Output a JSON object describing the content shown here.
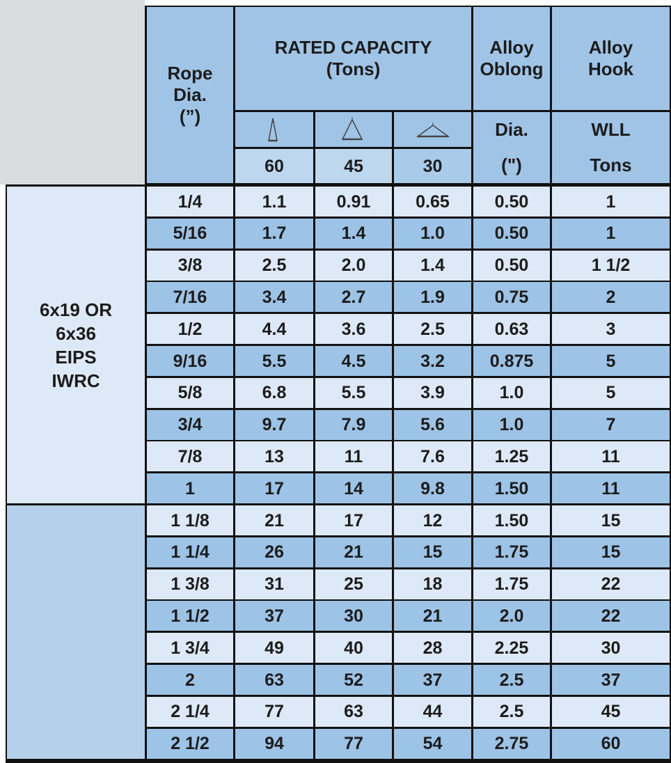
{
  "header": {
    "rope_dia": [
      "Rope",
      "Dia.",
      "(”)"
    ],
    "rated_capacity": [
      "RATED CAPACITY",
      "(Tons)"
    ],
    "angles": [
      "60",
      "45",
      "30"
    ],
    "alloy_oblong": [
      "Alloy",
      "Oblong"
    ],
    "oblong_units": [
      "Dia.",
      "(\")"
    ],
    "alloy_hook": [
      "Alloy",
      "Hook"
    ],
    "hook_units": [
      "WLL",
      "Tons"
    ]
  },
  "table": {
    "groups": [
      {
        "label": [
          "6x19 OR",
          "6x36",
          "EIPS",
          "IWRC"
        ],
        "rows": [
          [
            "1/4",
            "1.1",
            "0.91",
            "0.65",
            "0.50",
            "1"
          ],
          [
            "5/16",
            "1.7",
            "1.4",
            "1.0",
            "0.50",
            "1"
          ],
          [
            "3/8",
            "2.5",
            "2.0",
            "1.4",
            "0.50",
            "1 1/2"
          ],
          [
            "7/16",
            "3.4",
            "2.7",
            "1.9",
            "0.75",
            "2"
          ],
          [
            "1/2",
            "4.4",
            "3.6",
            "2.5",
            "0.63",
            "3"
          ],
          [
            "9/16",
            "5.5",
            "4.5",
            "3.2",
            "0.875",
            "5"
          ],
          [
            "5/8",
            "6.8",
            "5.5",
            "3.9",
            "1.0",
            "5"
          ],
          [
            "3/4",
            "9.7",
            "7.9",
            "5.6",
            "1.0",
            "7"
          ],
          [
            "7/8",
            "13",
            "11",
            "7.6",
            "1.25",
            "11"
          ],
          [
            "1",
            "17",
            "14",
            "9.8",
            "1.50",
            "11"
          ]
        ]
      },
      {
        "rows": [
          [
            "1 1/8",
            "21",
            "17",
            "12",
            "1.50",
            "15"
          ],
          [
            "1 1/4",
            "26",
            "21",
            "15",
            "1.75",
            "15"
          ],
          [
            "1 3/8",
            "31",
            "25",
            "18",
            "1.75",
            "22"
          ],
          [
            "1 1/2",
            "37",
            "30",
            "21",
            "2.0",
            "22"
          ],
          [
            "1 3/4",
            "49",
            "40",
            "28",
            "2.25",
            "30"
          ],
          [
            "2",
            "63",
            "52",
            "37",
            "2.5",
            "37"
          ],
          [
            "2 1/4",
            "77",
            "63",
            "44",
            "2.5",
            "45"
          ],
          [
            "2 1/2",
            "94",
            "77",
            "54",
            "2.75",
            "60"
          ]
        ]
      }
    ]
  }
}
